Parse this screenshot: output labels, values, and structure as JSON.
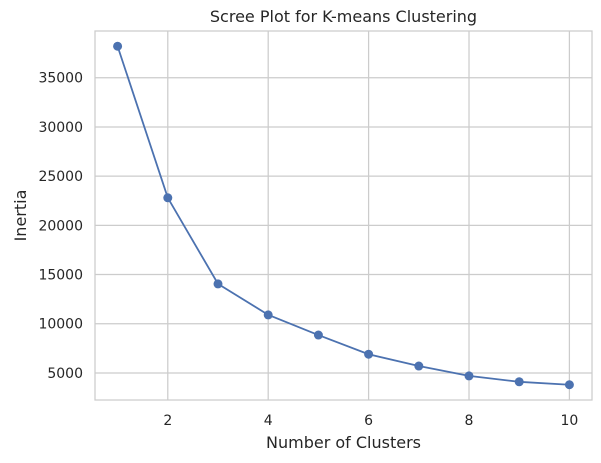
{
  "chart_data": {
    "type": "line",
    "title": "Scree Plot for K-means Clustering",
    "xlabel": "Number of Clusters",
    "ylabel": "Inertia",
    "xlim": [
      0.55,
      10.45
    ],
    "ylim": [
      2250,
      39750
    ],
    "x_ticks": [
      2,
      4,
      6,
      8,
      10
    ],
    "y_ticks": [
      5000,
      10000,
      15000,
      20000,
      25000,
      30000,
      35000
    ],
    "grid": true,
    "series": [
      {
        "x": [
          1,
          2,
          3,
          4,
          5,
          6,
          7,
          8,
          9,
          10
        ],
        "values": [
          38200,
          22800,
          14050,
          10900,
          8850,
          6900,
          5700,
          4700,
          4100,
          3800
        ],
        "color": "#4c72b0",
        "marker": "circle"
      }
    ]
  }
}
